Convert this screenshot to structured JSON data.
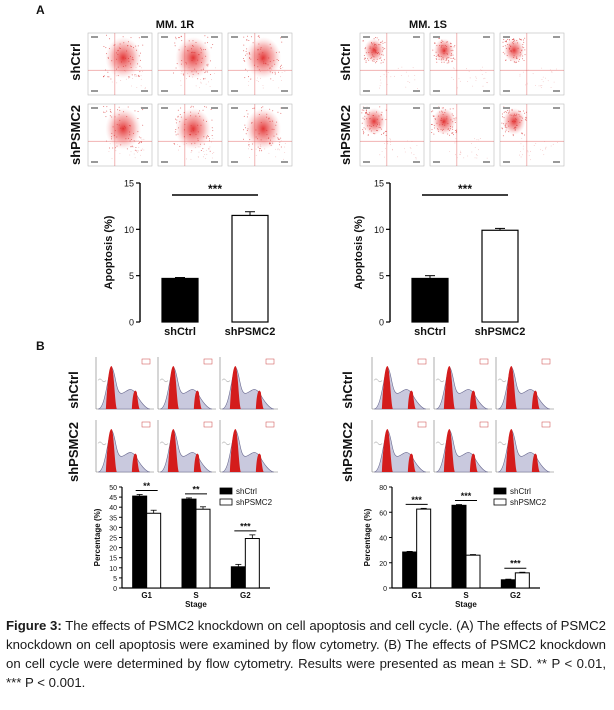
{
  "figure": {
    "panel_a": {
      "letter": "A",
      "groups": [
        {
          "title": "MM. 1R"
        },
        {
          "title": "MM. 1S"
        }
      ],
      "row_labels": [
        "shCtrl",
        "shPSMC2"
      ]
    },
    "panel_b": {
      "letter": "B",
      "row_labels": [
        "shCtrl",
        "shPSMC2"
      ]
    }
  },
  "caption": {
    "label": "Figure 3:",
    "text": "The effects of PSMC2 knockdown on cell apoptosis and cell cycle. (A) The effects of PSMC2 knockdown on cell apoptosis were examined by flow cytometry. (B) The effects of PSMC2 knockdown on cell cycle were determined by flow cytometry. Results were presented as mean ± SD. ** P < 0.01, *** P < 0.001."
  },
  "chart_data": [
    {
      "type": "bar",
      "panel": "A",
      "categories": [
        "shCtrl",
        "shPSMC2"
      ],
      "values": [
        4.7,
        11.5
      ],
      "errors": [
        0.1,
        0.4
      ],
      "colors": [
        "#000000",
        "#ffffff"
      ],
      "ylabel": "Apoptosis (%)",
      "ylim": [
        0,
        15
      ],
      "yticks": [
        0,
        5,
        10,
        15
      ],
      "significance": "***"
    },
    {
      "type": "bar",
      "panel": "A",
      "categories": [
        "shCtrl",
        "shPSMC2"
      ],
      "values": [
        4.7,
        9.9
      ],
      "errors": [
        0.3,
        0.2
      ],
      "colors": [
        "#000000",
        "#ffffff"
      ],
      "ylabel": "Apoptosis (%)",
      "ylim": [
        0,
        15
      ],
      "yticks": [
        0,
        5,
        10,
        15
      ],
      "significance": "***"
    },
    {
      "type": "bar",
      "panel": "B",
      "categories": [
        "G1",
        "S",
        "G2"
      ],
      "series": [
        {
          "name": "shCtrl",
          "color": "#000000",
          "values": [
            45.5,
            44,
            10.5
          ],
          "errors": [
            0.8,
            0.6,
            1.2
          ]
        },
        {
          "name": "shPSMC2",
          "color": "#ffffff",
          "values": [
            37,
            39,
            24.5
          ],
          "errors": [
            1.5,
            1.2,
            1.8
          ]
        }
      ],
      "xlabel": "Stage",
      "ylabel": "Percentage (%)",
      "ylim": [
        0,
        50
      ],
      "yticks": [
        0,
        5,
        10,
        15,
        20,
        25,
        30,
        35,
        40,
        45,
        50
      ],
      "legend": "top-right",
      "significance": [
        "**",
        "**",
        "***"
      ]
    },
    {
      "type": "bar",
      "panel": "B",
      "categories": [
        "G1",
        "S",
        "G2"
      ],
      "series": [
        {
          "name": "shCtrl",
          "color": "#000000",
          "values": [
            28.5,
            65.5,
            6.5
          ],
          "errors": [
            0.5,
            0.6,
            0.5
          ]
        },
        {
          "name": "shPSMC2",
          "color": "#ffffff",
          "values": [
            62.5,
            26,
            12
          ],
          "errors": [
            0.6,
            0.5,
            0.5
          ]
        }
      ],
      "xlabel": "Stage",
      "ylabel": "Percentage (%)",
      "ylim": [
        0,
        80
      ],
      "yticks": [
        0,
        20,
        40,
        60,
        80
      ],
      "legend": "top-right",
      "significance": [
        "***",
        "***",
        "***"
      ]
    }
  ]
}
